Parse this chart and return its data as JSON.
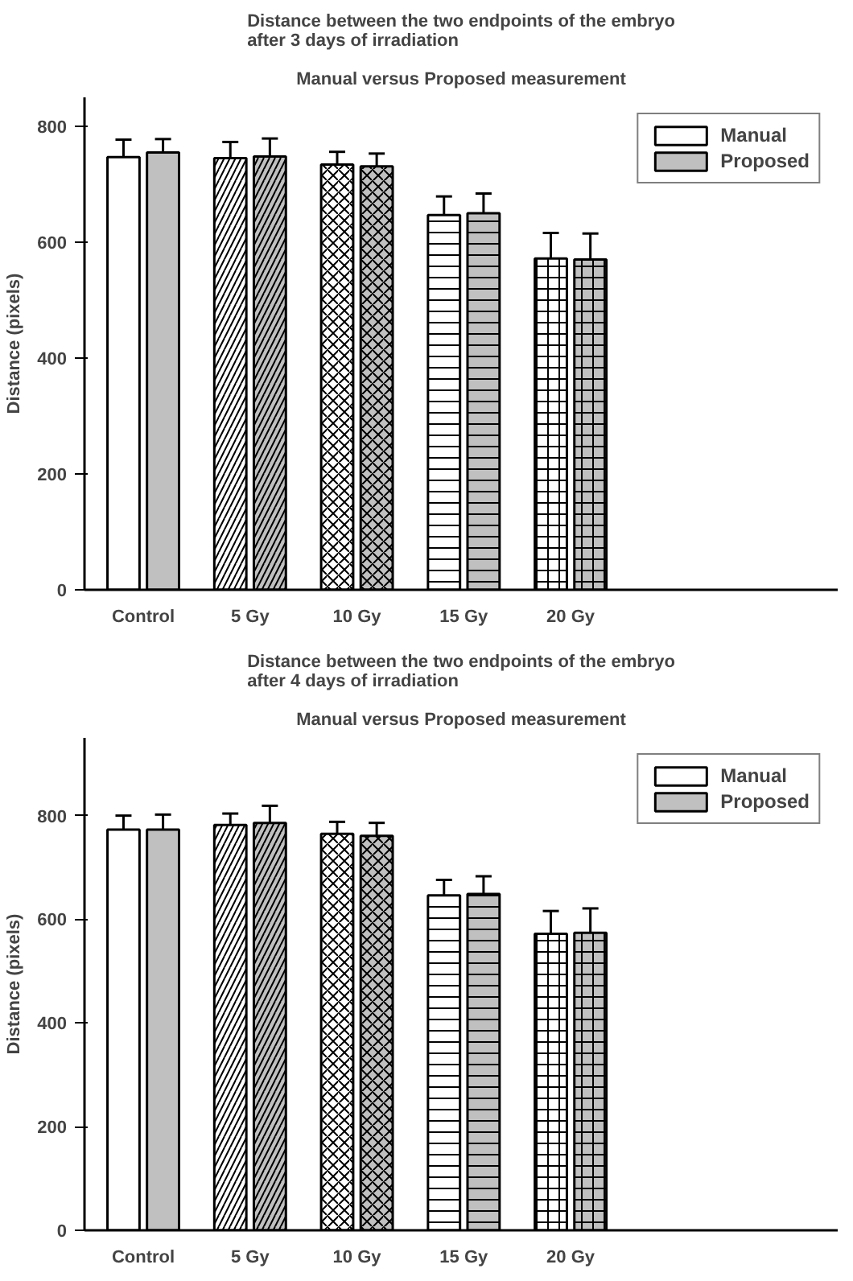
{
  "chart_data": [
    {
      "type": "bar",
      "title": "Distance between the two endpoints of the embryo\nafter 3 days of irradiation",
      "subtitle": "Manual versus Proposed measurement",
      "ylabel": "Distance (pixels)",
      "categories": [
        "Control",
        "5 Gy",
        "10 Gy",
        "15 Gy",
        "20 Gy"
      ],
      "ylim": [
        0,
        850
      ],
      "yticks": [
        0,
        200,
        400,
        600,
        800
      ],
      "grid": false,
      "legend": "top right",
      "series": [
        {
          "name": "Manual",
          "color": "#ffffff",
          "values": [
            747,
            745,
            734,
            647,
            572
          ],
          "errors": [
            30,
            28,
            22,
            32,
            44
          ]
        },
        {
          "name": "Proposed",
          "color": "#c0c0c0",
          "values": [
            755,
            748,
            731,
            650,
            570
          ],
          "errors": [
            23,
            31,
            22,
            34,
            45
          ]
        }
      ]
    },
    {
      "type": "bar",
      "title": "Distance between the two endpoints of the embryo\nafter 4 days of irradiation",
      "subtitle": "Manual versus Proposed measurement",
      "ylabel": "Distance (pixels)",
      "categories": [
        "Control",
        "5 Gy",
        "10 Gy",
        "15 Gy",
        "20 Gy"
      ],
      "ylim": [
        0,
        950
      ],
      "yticks": [
        0,
        200,
        400,
        600,
        800
      ],
      "grid": false,
      "legend": "top right",
      "series": [
        {
          "name": "Manual",
          "color": "#ffffff",
          "values": [
            773,
            782,
            765,
            646,
            572
          ],
          "errors": [
            27,
            22,
            23,
            30,
            44
          ]
        },
        {
          "name": "Proposed",
          "color": "#c0c0c0",
          "values": [
            773,
            786,
            761,
            649,
            574
          ],
          "errors": [
            29,
            33,
            25,
            34,
            47
          ]
        }
      ]
    }
  ]
}
